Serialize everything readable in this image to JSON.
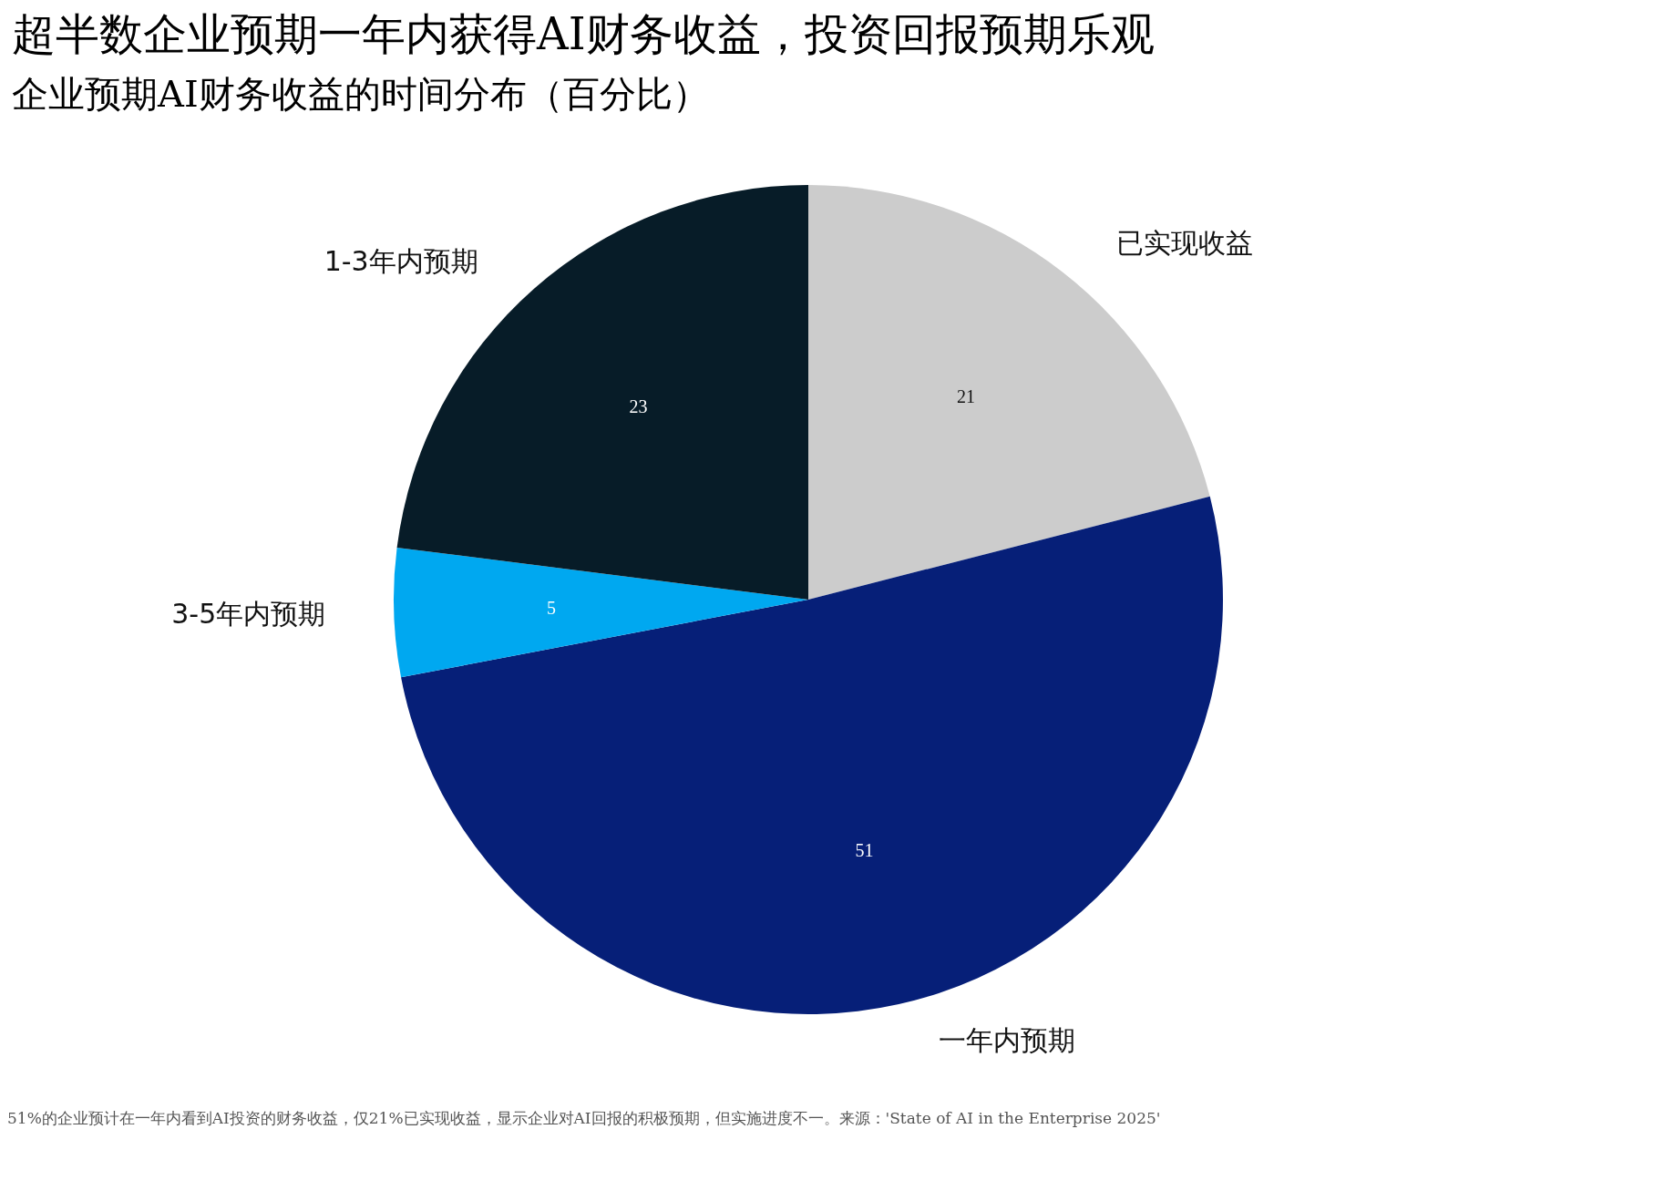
{
  "chart_data": {
    "type": "pie",
    "title": "超半数企业预期一年内获得AI财务收益，投资回报预期乐观",
    "subtitle": "企业预期AI财务收益的时间分布（百分比）",
    "categories": [
      "已实现收益",
      "一年内预期",
      "3-5年内预期",
      "1-3年内预期"
    ],
    "values": [
      21,
      51,
      5,
      23
    ],
    "colors": [
      "#cccccc",
      "#061f78",
      "#00a8f0",
      "#071c28"
    ],
    "data_labels": true,
    "legend": false,
    "annotations": [
      "51%的企业预计在一年内看到AI投资的财务收益，仅21%已实现收益，显示企业对AI回报的积极预期，但实施进度不一。来源：'State of AI in the Enterprise 2025'"
    ]
  }
}
